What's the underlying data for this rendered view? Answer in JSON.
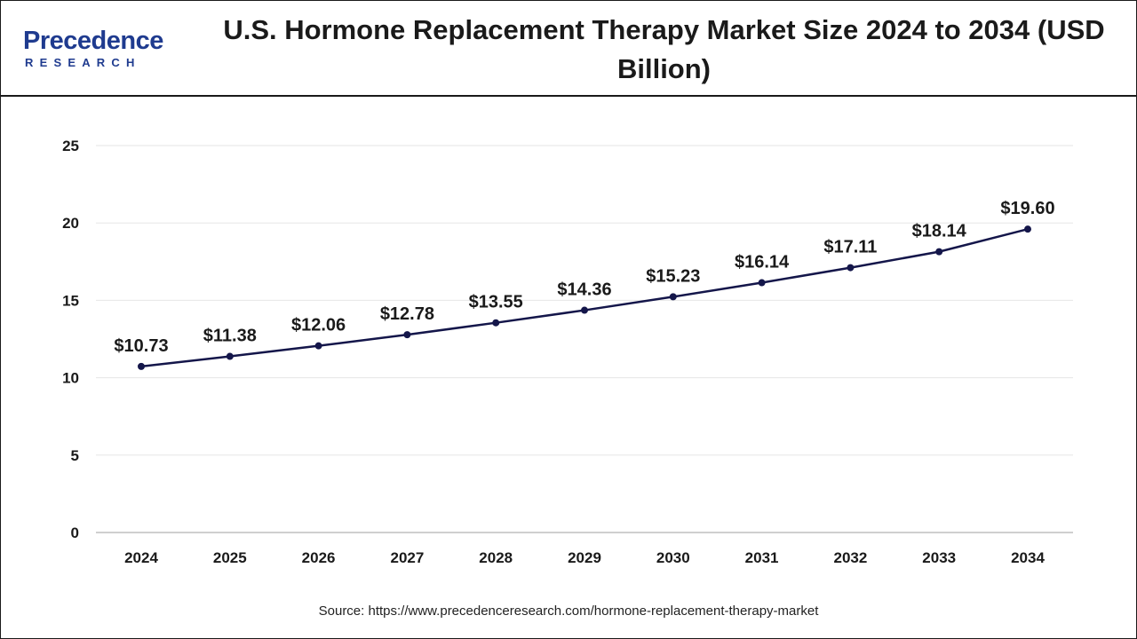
{
  "header": {
    "logo_word": "Precedence",
    "logo_sub": "RESEARCH"
  },
  "chart_data": {
    "type": "line",
    "title": "U.S. Hormone Replacement Therapy Market Size 2024 to 2034 (USD Billion)",
    "xlabel": "",
    "ylabel": "",
    "categories": [
      "2024",
      "2025",
      "2026",
      "2027",
      "2028",
      "2029",
      "2030",
      "2031",
      "2032",
      "2033",
      "2034"
    ],
    "series": [
      {
        "values": [
          10.73,
          11.38,
          12.06,
          12.78,
          13.55,
          14.36,
          15.23,
          16.14,
          17.11,
          18.14,
          19.6
        ],
        "labels": [
          "$10.73",
          "$11.38",
          "$12.06",
          "$12.78",
          "$13.55",
          "$14.36",
          "$15.23",
          "$16.14",
          "$17.11",
          "$18.14",
          "$19.60"
        ]
      }
    ],
    "ylim": [
      0,
      25
    ],
    "yticks": [
      "0",
      "5",
      "10",
      "15",
      "20",
      "25"
    ],
    "grid": true,
    "colors": {
      "line": "#14164a",
      "grid": "#e6e6e6",
      "axis": "#bfbfbf",
      "brand": "#1f3b8f"
    }
  },
  "footer": {
    "source": "Source: https://www.precedenceresearch.com/hormone-replacement-therapy-market"
  }
}
